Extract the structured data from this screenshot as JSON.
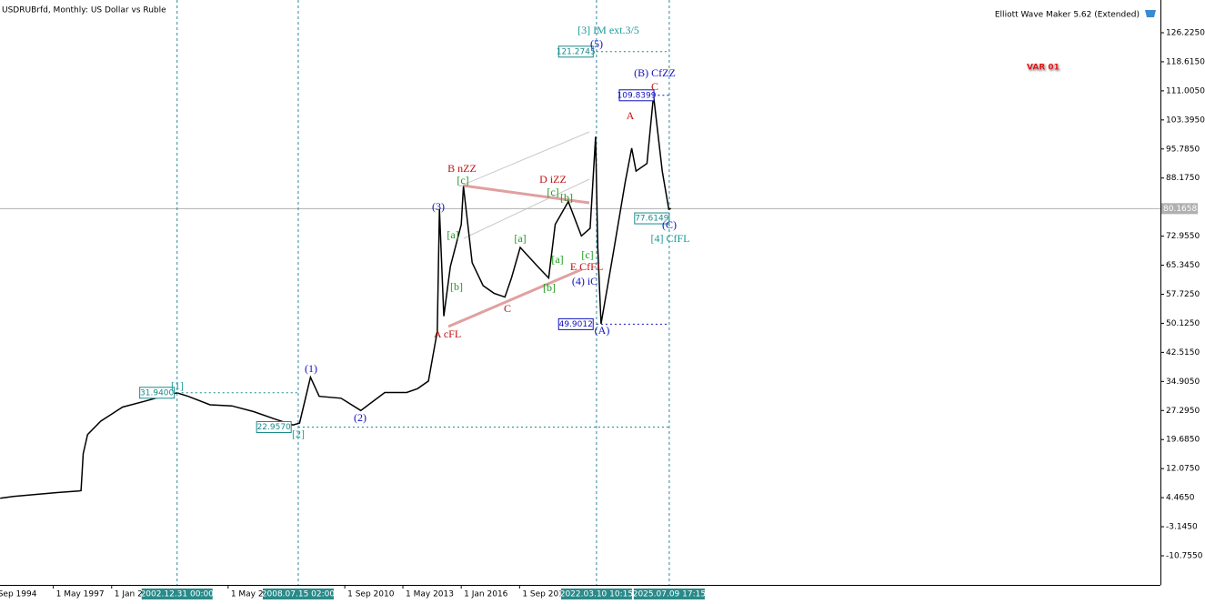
{
  "chart_data": {
    "type": "line",
    "title": "USDRUBrfd, Monthly:  US Dollar vs Ruble",
    "indicator": "Elliott Wave Maker 5.62 (Extended)",
    "variant": "VAR 01",
    "color": "#000000",
    "x": [
      1994.9,
      1995.5,
      1996.5,
      1997.5,
      1998.5,
      1998.6,
      1998.7,
      1998.9,
      1999.5,
      2000.5,
      2001.5,
      2002.5,
      2003.0,
      2003.5,
      2004.5,
      2005.5,
      2006.5,
      2007.5,
      2008.3,
      2008.6,
      2009.1,
      2009.5,
      2010.5,
      2011.4,
      2012.5,
      2013.5,
      2014.0,
      2014.5,
      2014.9,
      2015.0,
      2015.2,
      2015.5,
      2016.0,
      2016.1,
      2016.5,
      2017.0,
      2017.5,
      2018.0,
      2018.3,
      2018.7,
      2019.5,
      2020.0,
      2020.3,
      2020.9,
      2021.5,
      2021.9,
      2022.15,
      2022.25,
      2022.4,
      2022.7,
      2023.0,
      2023.5,
      2023.8,
      2024.0,
      2024.5,
      2024.8,
      2025.2,
      2025.5,
      2025.6
    ],
    "values": [
      4.3,
      4.8,
      5.3,
      5.8,
      6.2,
      6.3,
      16,
      21,
      24.5,
      28.2,
      29.7,
      31.3,
      31.9,
      31,
      28.8,
      28.5,
      27,
      25,
      23.5,
      24,
      36,
      31,
      30.5,
      27.3,
      32,
      32,
      33,
      35,
      48,
      80,
      52,
      65,
      76,
      86,
      66,
      60,
      58,
      57,
      62,
      70,
      65,
      62,
      76,
      82,
      73,
      75,
      99,
      70,
      50,
      60,
      70,
      87,
      96,
      90,
      92,
      109.8,
      90,
      80,
      80.17
    ],
    "xlim": [
      1994.89,
      2048.0
    ],
    "ylim": [
      -18.38,
      134.8
    ],
    "xticks": [
      {
        "value": 1994.67,
        "label": "Sep 1994"
      },
      {
        "value": 1997.33,
        "label": "1 May 1997"
      },
      {
        "value": 2000.0,
        "label": "1 Jan 2000"
      },
      {
        "value": 2005.33,
        "label": "1 May 2005"
      },
      {
        "value": 2010.67,
        "label": "1 Sep 2010"
      },
      {
        "value": 2013.33,
        "label": "1 May 2013"
      },
      {
        "value": 2016.0,
        "label": "1 Jan 2016"
      },
      {
        "value": 2018.67,
        "label": "1 Sep 2018"
      }
    ],
    "yticks": [
      {
        "value": 126.225,
        "label": "126.2250"
      },
      {
        "value": 118.615,
        "label": "118.6150"
      },
      {
        "value": 111.005,
        "label": "111.0050"
      },
      {
        "value": 103.395,
        "label": "103.3950"
      },
      {
        "value": 95.785,
        "label": "95.7850"
      },
      {
        "value": 88.175,
        "label": "88.1750"
      },
      {
        "value": 72.955,
        "label": "72.9550"
      },
      {
        "value": 65.345,
        "label": "65.3450"
      },
      {
        "value": 57.725,
        "label": "57.7250"
      },
      {
        "value": 50.125,
        "label": "50.1250"
      },
      {
        "value": 42.515,
        "label": "42.5150"
      },
      {
        "value": 34.905,
        "label": "34.9050"
      },
      {
        "value": 27.295,
        "label": "27.2950"
      },
      {
        "value": 19.685,
        "label": "19.6850"
      },
      {
        "value": 12.075,
        "label": "12.0750"
      },
      {
        "value": 4.465,
        "label": "4.4650"
      },
      {
        "value": -3.145,
        "label": "-3.1450"
      },
      {
        "value": -10.755,
        "label": "-10.7550"
      }
    ],
    "current_price": 80.1658,
    "time_markers": [
      {
        "value": 2002.996,
        "label": "2002.12.31 00:00"
      },
      {
        "value": 2008.54,
        "label": "2008.07.15 02:00"
      },
      {
        "value": 2022.19,
        "label": "2022.03.10 10:15"
      },
      {
        "value": 2025.52,
        "label": "2025.07.09 17:15"
      }
    ],
    "levels": [
      {
        "value": 121.2745,
        "color": "#1a8a8a"
      },
      {
        "value": 109.8399,
        "color": "#1010c0"
      },
      {
        "value": 77.6149,
        "color": "#1a8a8a"
      },
      {
        "value": 49.9012,
        "color": "#1010c0"
      },
      {
        "value": 31.94,
        "label": "31.9400",
        "color": "#1a8a8a"
      },
      {
        "value": 22.957,
        "label": "22.9570",
        "color": "#1a8a8a"
      }
    ],
    "wave_labels": [
      {
        "text": "[3] IM ext.3/5",
        "color": "#1a9a9a"
      },
      {
        "text": "(5)",
        "color": "#1010c0"
      },
      {
        "text": "(B) CfZZ",
        "color": "#1010c0"
      },
      {
        "text": "C",
        "color": "#c01010"
      },
      {
        "text": "A",
        "color": "#c01010"
      },
      {
        "text": "B nZZ",
        "color": "#c01010"
      },
      {
        "text": "D iZZ",
        "color": "#c01010"
      },
      {
        "text": "(3)",
        "color": "#1010c0"
      },
      {
        "text": "[c]",
        "color": "#1a9a1a"
      },
      {
        "text": "[a]",
        "color": "#1a9a1a"
      },
      {
        "text": "[b]",
        "color": "#1a9a1a"
      },
      {
        "text": "[c]",
        "color": "#1a9a1a"
      },
      {
        "text": "[b]",
        "color": "#1a9a1a"
      },
      {
        "text": "[a]",
        "color": "#1a9a1a"
      },
      {
        "text": "[a]",
        "color": "#1a9a1a"
      },
      {
        "text": "[b]",
        "color": "#1a9a1a"
      },
      {
        "text": "[c]",
        "color": "#1a9a1a"
      },
      {
        "text": "C",
        "color": "#c01010"
      },
      {
        "text": "E CfFL",
        "color": "#c01010"
      },
      {
        "text": "(4) iC",
        "color": "#1010c0"
      },
      {
        "text": "(A)",
        "color": "#1010c0"
      },
      {
        "text": "A cFL",
        "color": "#c01010"
      },
      {
        "text": "(C)",
        "color": "#1010c0"
      },
      {
        "text": "[4] CfFL",
        "color": "#1a9a9a"
      },
      {
        "text": "[1]",
        "color": "#1a9a9a"
      },
      {
        "text": "(1)",
        "color": "#1010c0"
      },
      {
        "text": "(2)",
        "color": "#1010c0"
      },
      {
        "text": "[2]",
        "color": "#1a9a9a"
      }
    ]
  }
}
